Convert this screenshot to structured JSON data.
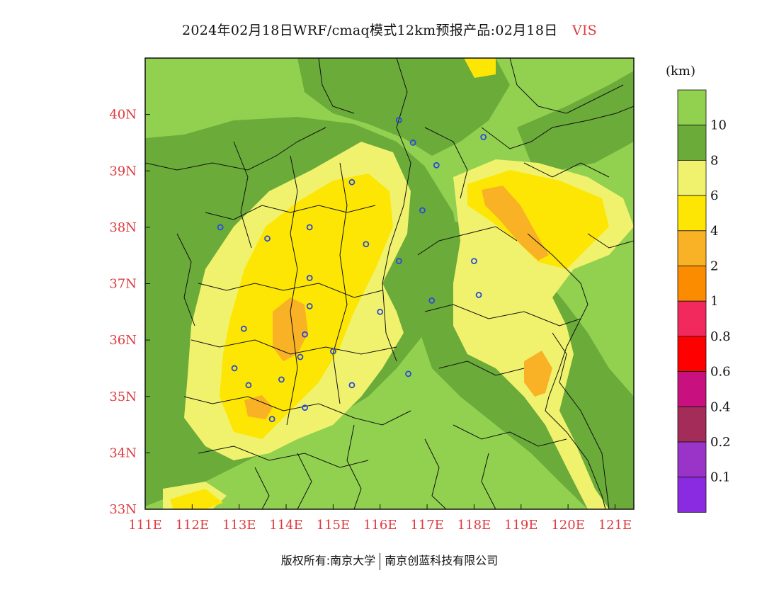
{
  "title": {
    "text": "2024年02月18日WRF/cmaq模式12km预报产品:02月18日",
    "variable": "VIS"
  },
  "colors": {
    "label_red": "#e0393e",
    "vis_gt10": "#92d050",
    "vis_8_10": "#6aab3a",
    "vis_6_8": "#f0f26e",
    "vis_4_6": "#fde603",
    "vis_2_4": "#f9b125",
    "vis_1_2": "#fb8c00",
    "station": "#2a4bd8"
  },
  "map": {
    "lat_labels": [
      "40N",
      "39N",
      "38N",
      "37N",
      "36N",
      "35N",
      "34N",
      "33N"
    ],
    "lon_labels": [
      "111E",
      "112E",
      "113E",
      "114E",
      "115E",
      "116E",
      "117E",
      "118E",
      "119E",
      "120E",
      "121E"
    ],
    "lat_range": [
      33,
      41
    ],
    "lon_range": [
      111,
      121.4
    ],
    "stations": [
      {
        "lon": 116.4,
        "lat": 39.9
      },
      {
        "lon": 116.7,
        "lat": 39.5
      },
      {
        "lon": 117.2,
        "lat": 39.1
      },
      {
        "lon": 118.2,
        "lat": 39.6
      },
      {
        "lon": 115.4,
        "lat": 38.8
      },
      {
        "lon": 116.9,
        "lat": 38.3
      },
      {
        "lon": 112.6,
        "lat": 38.0
      },
      {
        "lon": 113.6,
        "lat": 37.8
      },
      {
        "lon": 114.5,
        "lat": 38.0
      },
      {
        "lon": 115.7,
        "lat": 37.7
      },
      {
        "lon": 116.4,
        "lat": 37.4
      },
      {
        "lon": 118.0,
        "lat": 37.4
      },
      {
        "lon": 114.5,
        "lat": 37.1
      },
      {
        "lon": 118.1,
        "lat": 36.8
      },
      {
        "lon": 117.1,
        "lat": 36.7
      },
      {
        "lon": 114.5,
        "lat": 36.6
      },
      {
        "lon": 116.0,
        "lat": 36.5
      },
      {
        "lon": 113.1,
        "lat": 36.2
      },
      {
        "lon": 114.4,
        "lat": 36.1
      },
      {
        "lon": 114.3,
        "lat": 35.7
      },
      {
        "lon": 115.0,
        "lat": 35.8
      },
      {
        "lon": 112.9,
        "lat": 35.5
      },
      {
        "lon": 116.6,
        "lat": 35.4
      },
      {
        "lon": 113.9,
        "lat": 35.3
      },
      {
        "lon": 113.2,
        "lat": 35.2
      },
      {
        "lon": 115.4,
        "lat": 35.2
      },
      {
        "lon": 114.4,
        "lat": 34.8
      },
      {
        "lon": 113.7,
        "lat": 34.6
      }
    ]
  },
  "colorbar": {
    "unit": "(km)",
    "labels": [
      "10",
      "8",
      "6",
      "4",
      "2",
      "1",
      "0.8",
      "0.6",
      "0.4",
      "0.2",
      "0.1"
    ],
    "colors": [
      "#92d050",
      "#6aab3a",
      "#f0f26e",
      "#fde603",
      "#f9b125",
      "#fb8c00",
      "#f2295c",
      "#fe0000",
      "#c8117f",
      "#a32c59",
      "#9a33c8",
      "#8a2be2"
    ]
  },
  "footer": {
    "left": "版权所有:南京大学",
    "right": "南京创蓝科技有限公司"
  }
}
